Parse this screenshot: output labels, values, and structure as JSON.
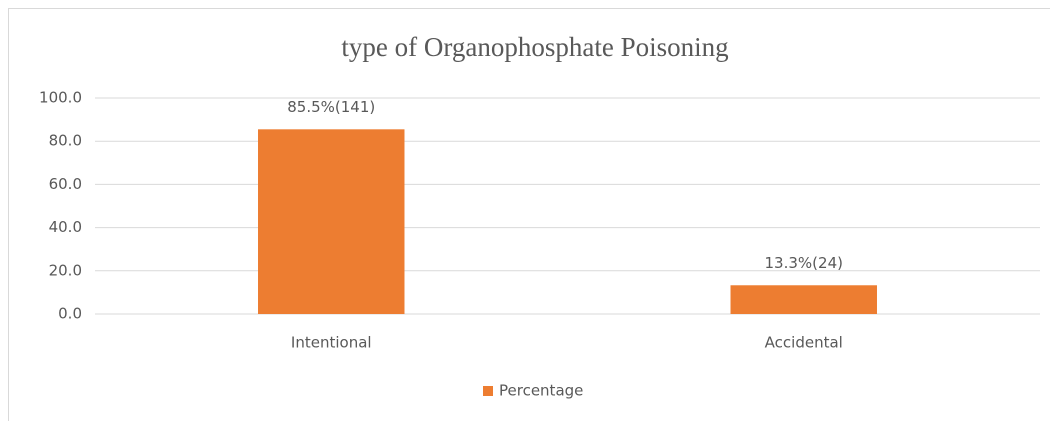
{
  "chart_data": {
    "type": "bar",
    "title": "type of Organophosphate Poisoning",
    "categories": [
      "Intentional",
      "Accidental"
    ],
    "series": [
      {
        "name": "Percentage",
        "color": "#ed7d31",
        "values": [
          85.5,
          13.3
        ],
        "value_labels": [
          "85.5%(141)",
          "13.3%(24)"
        ]
      }
    ],
    "ylim": [
      0,
      100
    ],
    "yticks": [
      {
        "value": 0,
        "label": "0.0"
      },
      {
        "value": 20,
        "label": "20.0"
      },
      {
        "value": 40,
        "label": "40.0"
      },
      {
        "value": 60,
        "label": "60.0"
      },
      {
        "value": 80,
        "label": "80.0"
      },
      {
        "value": 100,
        "label": "100.0"
      }
    ],
    "grid": true,
    "legend": "bottom"
  }
}
